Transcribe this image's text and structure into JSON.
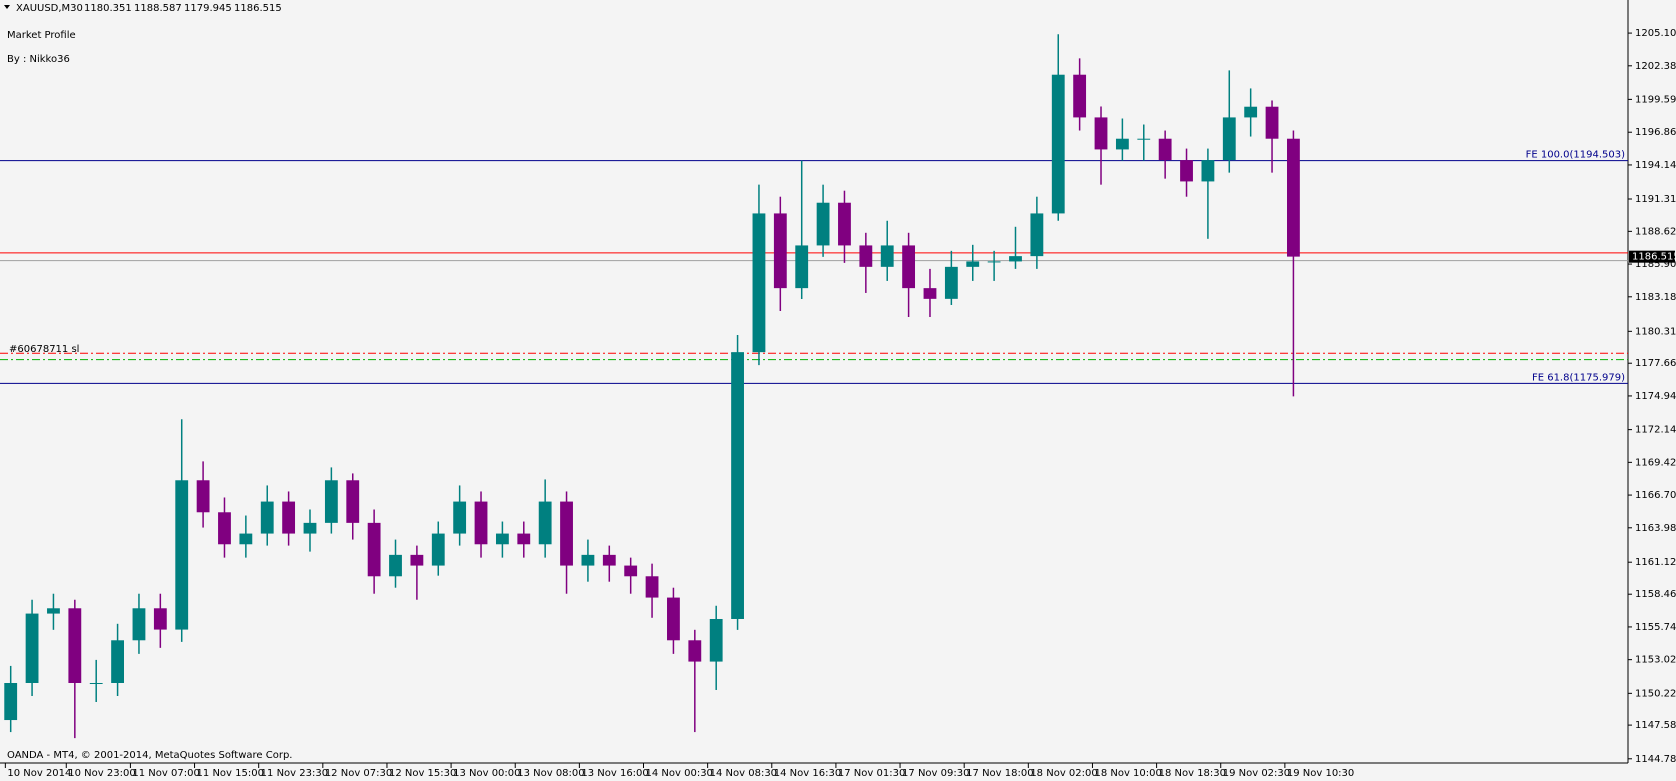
{
  "chart_data": {
    "type": "candlestick",
    "symbol": "XAUUSD,M30",
    "header_ohlc": [
      1180.351,
      1188.587,
      1179.945,
      1186.515
    ],
    "indicator": "Market Profile",
    "author": "By : Nikko36",
    "footer": "OANDA - MT4, © 2001-2014, MetaQuotes Software Corp.",
    "order_label": "#60678711 sl",
    "up_color": "#008080",
    "down_color": "#800080",
    "x": [
      0.5,
      1.5,
      2.5,
      3.5,
      4.5,
      5.5,
      6.5,
      7.5,
      8.5,
      9.5,
      10.5,
      11.5,
      12.5,
      13.5,
      14.5,
      15.5,
      16.5,
      17.5,
      18.5,
      19.5,
      20.5,
      21.5,
      22.5,
      23.5,
      24.5,
      25.5,
      26.5,
      27.5,
      28.5,
      29.5,
      30.5,
      31.5,
      32.5,
      33.5,
      34.5,
      35.5,
      36.5,
      37.5,
      38.5,
      39.5,
      40.5,
      41.5,
      42.5,
      43.5,
      44.5,
      45.5,
      46.5,
      47.5,
      48.5,
      49.5,
      50.5,
      51.5,
      52.5,
      53.5,
      54.5,
      55.5,
      56.5,
      57.5,
      58.5,
      59.5,
      60.5
    ],
    "open": [
      1148.0,
      1151.08,
      1156.85,
      1157.29,
      1151.08,
      1151.08,
      1154.63,
      1157.29,
      1155.52,
      1167.93,
      1165.27,
      1162.61,
      1163.5,
      1166.16,
      1163.5,
      1164.39,
      1167.93,
      1164.39,
      1159.95,
      1161.73,
      1160.84,
      1163.5,
      1166.16,
      1162.61,
      1163.5,
      1162.61,
      1166.16,
      1160.84,
      1161.73,
      1160.84,
      1159.95,
      1158.18,
      1154.63,
      1152.86,
      1156.4,
      1178.58,
      1190.11,
      1183.9,
      1187.45,
      1191.0,
      1187.45,
      1185.67,
      1187.45,
      1183.9,
      1183.01,
      1185.67,
      1186.12,
      1186.12,
      1186.56,
      1190.11,
      1201.64,
      1198.09,
      1195.43,
      1196.32,
      1196.32,
      1194.54,
      1192.77,
      1194.54,
      1198.09,
      1198.98,
      1196.32
    ],
    "high": [
      1152.5,
      1158.0,
      1158.5,
      1158.0,
      1153.0,
      1156.0,
      1158.5,
      1158.5,
      1173.0,
      1169.5,
      1166.5,
      1165.0,
      1167.5,
      1167.0,
      1165.5,
      1169.0,
      1168.5,
      1165.5,
      1163.0,
      1162.5,
      1164.5,
      1167.5,
      1167.0,
      1164.5,
      1164.5,
      1168.0,
      1167.0,
      1163.0,
      1162.5,
      1161.5,
      1161.0,
      1159.0,
      1155.5,
      1157.5,
      1180.0,
      1192.5,
      1191.5,
      1194.5,
      1192.5,
      1192.0,
      1188.5,
      1189.5,
      1188.5,
      1185.5,
      1187.0,
      1187.5,
      1187.0,
      1189.0,
      1191.5,
      1205.0,
      1203.0,
      1199.0,
      1198.0,
      1197.5,
      1197.0,
      1195.5,
      1195.5,
      1202.0,
      1200.5,
      1199.5,
      1197.0
    ],
    "low": [
      1147.0,
      1150.0,
      1155.5,
      1146.5,
      1149.5,
      1150.0,
      1153.5,
      1154.0,
      1154.5,
      1164.0,
      1161.5,
      1161.5,
      1162.5,
      1162.5,
      1162.0,
      1163.5,
      1163.0,
      1158.5,
      1159.0,
      1158.0,
      1160.0,
      1162.5,
      1161.5,
      1161.5,
      1161.5,
      1161.5,
      1158.5,
      1159.5,
      1159.5,
      1158.5,
      1156.5,
      1153.5,
      1147.0,
      1150.5,
      1155.5,
      1177.5,
      1182.0,
      1183.0,
      1186.5,
      1186.0,
      1183.5,
      1184.5,
      1181.5,
      1181.5,
      1182.5,
      1184.5,
      1184.5,
      1185.5,
      1185.5,
      1189.5,
      1197.0,
      1192.5,
      1194.5,
      1194.5,
      1193.0,
      1191.5,
      1188.0,
      1193.5,
      1196.5,
      1193.5,
      1174.9
    ],
    "close": [
      1151.08,
      1156.85,
      1157.29,
      1151.08,
      1151.08,
      1154.63,
      1157.29,
      1155.52,
      1167.93,
      1165.27,
      1162.61,
      1163.5,
      1166.16,
      1163.5,
      1164.39,
      1167.93,
      1164.39,
      1159.95,
      1161.73,
      1160.84,
      1163.5,
      1166.16,
      1162.61,
      1163.5,
      1162.61,
      1166.16,
      1160.84,
      1161.73,
      1160.84,
      1159.95,
      1158.18,
      1154.63,
      1152.86,
      1156.4,
      1178.58,
      1190.11,
      1183.9,
      1187.45,
      1191.0,
      1187.45,
      1185.67,
      1187.45,
      1183.9,
      1183.01,
      1185.67,
      1186.12,
      1186.12,
      1186.56,
      1190.11,
      1201.64,
      1198.09,
      1195.43,
      1196.32,
      1196.32,
      1194.54,
      1192.77,
      1194.54,
      1198.09,
      1198.98,
      1196.32,
      1186.52
    ],
    "xlim": [
      0,
      76.15
    ],
    "xticks": [
      {
        "value": 0.25,
        "label": "10 Nov 2014"
      },
      {
        "value": 3.1,
        "label": "10 Nov 23:00"
      },
      {
        "value": 6.1,
        "label": "11 Nov 07:00"
      },
      {
        "value": 9.1,
        "label": "11 Nov 15:00"
      },
      {
        "value": 12.1,
        "label": "11 Nov 23:30"
      },
      {
        "value": 15.1,
        "label": "12 Nov 07:30"
      },
      {
        "value": 18.1,
        "label": "12 Nov 15:30"
      },
      {
        "value": 21.1,
        "label": "13 Nov 00:00"
      },
      {
        "value": 24.1,
        "label": "13 Nov 08:00"
      },
      {
        "value": 27.1,
        "label": "13 Nov 16:00"
      },
      {
        "value": 30.1,
        "label": "14 Nov 00:30"
      },
      {
        "value": 33.1,
        "label": "14 Nov 08:30"
      },
      {
        "value": 36.1,
        "label": "14 Nov 16:30"
      },
      {
        "value": 39.1,
        "label": "17 Nov 01:30"
      },
      {
        "value": 42.1,
        "label": "17 Nov 09:30"
      },
      {
        "value": 45.1,
        "label": "17 Nov 18:00"
      },
      {
        "value": 48.1,
        "label": "18 Nov 02:00"
      },
      {
        "value": 51.1,
        "label": "18 Nov 10:00"
      },
      {
        "value": 54.1,
        "label": "18 Nov 18:30"
      },
      {
        "value": 57.1,
        "label": "19 Nov 02:30"
      },
      {
        "value": 60.1,
        "label": "19 Nov 10:30"
      }
    ],
    "ylim": [
      1144.43,
      1207.85
    ],
    "yticks": [
      {
        "value": 1205.1,
        "label": "1205.100"
      },
      {
        "value": 1202.38,
        "label": "1202.380"
      },
      {
        "value": 1199.59,
        "label": "1199.590"
      },
      {
        "value": 1196.86,
        "label": "1196.860"
      },
      {
        "value": 1194.14,
        "label": "1194.140"
      },
      {
        "value": 1191.31,
        "label": "1191.310"
      },
      {
        "value": 1188.62,
        "label": "1188.620"
      },
      {
        "value": 1185.9,
        "label": "1185.900"
      },
      {
        "value": 1183.18,
        "label": "1183.180"
      },
      {
        "value": 1180.31,
        "label": "1180.310"
      },
      {
        "value": 1177.66,
        "label": "1177.660"
      },
      {
        "value": 1174.94,
        "label": "1174.940"
      },
      {
        "value": 1172.14,
        "label": "1172.140"
      },
      {
        "value": 1169.42,
        "label": "1169.420"
      },
      {
        "value": 1166.7,
        "label": "1166.700"
      },
      {
        "value": 1163.98,
        "label": "1163.980"
      },
      {
        "value": 1161.12,
        "label": "1161.120"
      },
      {
        "value": 1158.46,
        "label": "1158.460"
      },
      {
        "value": 1155.74,
        "label": "1155.740"
      },
      {
        "value": 1153.02,
        "label": "1153.020"
      },
      {
        "value": 1150.22,
        "label": "1150.220"
      },
      {
        "value": 1147.58,
        "label": "1147.580"
      },
      {
        "value": 1144.78,
        "label": "1144.780"
      }
    ],
    "hlines": [
      {
        "value": 1194.503,
        "label": "FE 100.0(1194.503)",
        "color": "#00008b",
        "style": "solid"
      },
      {
        "value": 1175.979,
        "label": "FE 61.8(1175.979)",
        "color": "#00008b",
        "style": "solid"
      },
      {
        "value": 1186.83,
        "color": "#ff0000",
        "style": "solid"
      },
      {
        "value": 1178.49,
        "color": "#ff0000",
        "style": "dashdot"
      },
      {
        "value": 1177.96,
        "color": "#00b000",
        "style": "dashdot"
      }
    ],
    "last_price": 1186.515,
    "last_price_color": "#a0a0a0"
  }
}
